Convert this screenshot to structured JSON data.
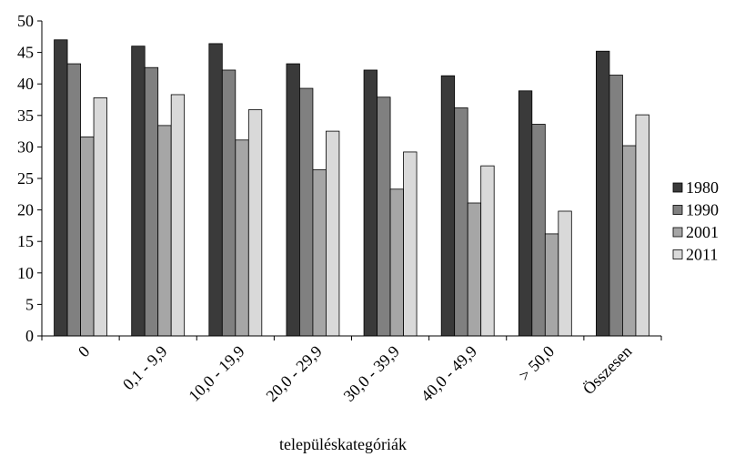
{
  "chart_data": {
    "type": "bar",
    "title": "",
    "xlabel": "településkategóriák",
    "ylabel": "",
    "ylim": [
      0,
      50
    ],
    "yticks": [
      0,
      5,
      10,
      15,
      20,
      25,
      30,
      35,
      40,
      45,
      50
    ],
    "grid": false,
    "legend_position": "right",
    "categories": [
      "0",
      "0,1 - 9,9",
      "10,0 - 19,9",
      "20,0 - 29,9",
      "30,0 - 39,9",
      "40,0 - 49,9",
      "> 50,0",
      "Összesen"
    ],
    "series": [
      {
        "name": "1980",
        "color": "#3a3a3a",
        "values": [
          47.0,
          46.0,
          46.4,
          43.2,
          42.2,
          41.3,
          38.9,
          45.2
        ]
      },
      {
        "name": "1990",
        "color": "#808080",
        "values": [
          43.2,
          42.6,
          42.2,
          39.3,
          37.9,
          36.2,
          33.6,
          41.4
        ]
      },
      {
        "name": "2001",
        "color": "#a6a6a6",
        "values": [
          31.6,
          33.4,
          31.1,
          26.4,
          23.3,
          21.1,
          16.2,
          30.2
        ]
      },
      {
        "name": "2011",
        "color": "#d9d9d9",
        "values": [
          37.8,
          38.3,
          35.9,
          32.5,
          29.2,
          27.0,
          19.8,
          35.1
        ]
      }
    ]
  }
}
